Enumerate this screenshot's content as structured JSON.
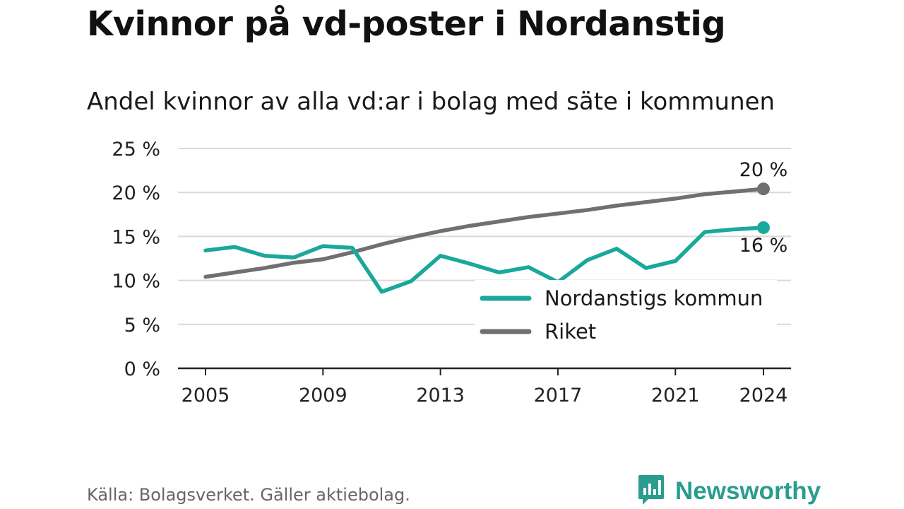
{
  "title": "Kvinnor på vd-poster i Nordanstig",
  "subtitle": "Andel kvinnor av alla vd:ar i bolag med säte i kommunen",
  "source": "Källa: Bolagsverket. Gäller aktiebolag.",
  "brand": {
    "name": "Newsworthy",
    "logo_icon": "bar-chart-speech-bubble-icon"
  },
  "colors": {
    "kommun": "#1aa89b",
    "riket": "#707070",
    "grid": "#d9d9d9",
    "axis": "#222222",
    "brand": "#2a9d8f"
  },
  "chart_data": {
    "type": "line",
    "title": "Kvinnor på vd-poster i Nordanstig",
    "subtitle": "Andel kvinnor av alla vd:ar i bolag med säte i kommunen",
    "x": [
      2005,
      2006,
      2007,
      2008,
      2009,
      2010,
      2011,
      2012,
      2013,
      2014,
      2015,
      2016,
      2017,
      2018,
      2019,
      2020,
      2021,
      2022,
      2023,
      2024
    ],
    "x_ticks": [
      "2005",
      "2009",
      "2013",
      "2017",
      "2021",
      "2024"
    ],
    "y_ticks": [
      "0 %",
      "5 %",
      "10 %",
      "15 %",
      "20 %",
      "25 %"
    ],
    "ylim": [
      0,
      25
    ],
    "grid": true,
    "legend_position": "bottom-right",
    "series": [
      {
        "name": "Nordanstigs kommun",
        "values": [
          13.4,
          13.8,
          12.8,
          12.6,
          13.9,
          13.7,
          8.7,
          9.9,
          12.8,
          11.9,
          10.9,
          11.5,
          9.8,
          12.3,
          13.6,
          11.4,
          12.2,
          15.5,
          15.8,
          16.0
        ],
        "end_label": "16 %"
      },
      {
        "name": "Riket",
        "values": [
          10.4,
          10.9,
          11.4,
          12.0,
          12.4,
          13.2,
          14.1,
          14.9,
          15.6,
          16.2,
          16.7,
          17.2,
          17.6,
          18.0,
          18.5,
          18.9,
          19.3,
          19.8,
          20.1,
          20.4
        ],
        "end_label": "20 %"
      }
    ]
  }
}
